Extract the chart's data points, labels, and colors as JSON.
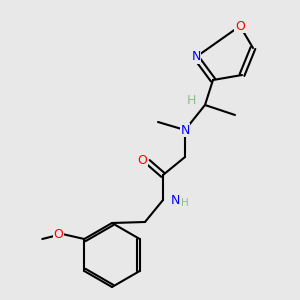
{
  "background_color": "#e8e8e8",
  "bond_color": "#000000",
  "bond_width": 1.5,
  "atom_colors": {
    "N": "#0000ff",
    "O": "#ff0000",
    "C": "#000000",
    "H_label": "#8fbc8f"
  },
  "font_size_atoms": 9,
  "font_size_small": 7.5
}
